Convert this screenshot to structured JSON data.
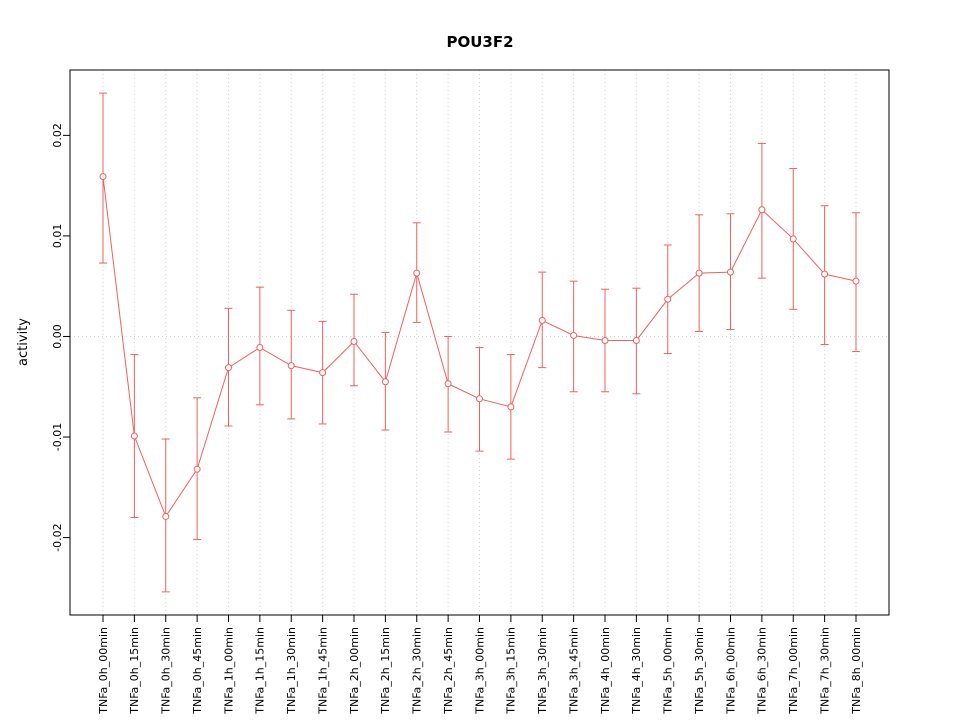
{
  "chart_data": {
    "type": "line",
    "title": "POU3F2",
    "ylabel": "activity",
    "xlabel": "",
    "legend": "none",
    "grid": true,
    "marker": "open-circle",
    "error_bars": true,
    "series_color": "#f0615d",
    "grid_color": "#d4d4d4",
    "ylim": [
      -0.0277,
      0.0265
    ],
    "yticks": [
      -0.02,
      -0.01,
      0,
      0.01,
      0.02
    ],
    "ytick_labels": [
      "-0.02",
      "-0.01",
      "0.00",
      "0.01",
      "0.02"
    ],
    "categories": [
      "TNFa_0h_00min",
      "TNFa_0h_15min",
      "TNFa_0h_30min",
      "TNFa_0h_45min",
      "TNFa_1h_00min",
      "TNFa_1h_15min",
      "TNFa_1h_30min",
      "TNFa_1h_45min",
      "TNFa_2h_00min",
      "TNFa_2h_15min",
      "TNFa_2h_30min",
      "TNFa_2h_45min",
      "TNFa_3h_00min",
      "TNFa_3h_15min",
      "TNFa_3h_30min",
      "TNFa_3h_45min",
      "TNFa_4h_00min",
      "TNFa_4h_30min",
      "TNFa_5h_00min",
      "TNFa_5h_30min",
      "TNFa_6h_00min",
      "TNFa_6h_30min",
      "TNFa_7h_00min",
      "TNFa_7h_30min",
      "TNFa_8h_00min"
    ],
    "values": [
      0.0159,
      -0.0099,
      -0.0179,
      -0.0132,
      -0.0031,
      -0.0011,
      -0.0029,
      -0.0036,
      -0.0005,
      -0.0045,
      0.0063,
      -0.0047,
      -0.0062,
      -0.007,
      0.0016,
      0.0001,
      -0.0004,
      -0.0004,
      0.0037,
      0.0063,
      0.0064,
      0.0126,
      0.0097,
      0.0062,
      0.0055
    ],
    "error_high": [
      0.0242,
      -0.0018,
      -0.0102,
      -0.0061,
      0.0028,
      0.0049,
      0.0026,
      0.0015,
      0.0042,
      0.0004,
      0.0113,
      0.0,
      -0.0011,
      -0.0018,
      0.0064,
      0.0055,
      0.0047,
      0.0048,
      0.0091,
      0.0121,
      0.0122,
      0.0192,
      0.0167,
      0.013,
      0.0123
    ],
    "error_low": [
      0.0073,
      -0.018,
      -0.0254,
      -0.0202,
      -0.0089,
      -0.0068,
      -0.0082,
      -0.0087,
      -0.0049,
      -0.0093,
      0.0014,
      -0.0095,
      -0.0114,
      -0.0122,
      -0.0031,
      -0.0055,
      -0.0055,
      -0.0057,
      -0.0017,
      0.0005,
      0.0007,
      0.0058,
      0.0027,
      -0.0008,
      -0.0015
    ]
  }
}
